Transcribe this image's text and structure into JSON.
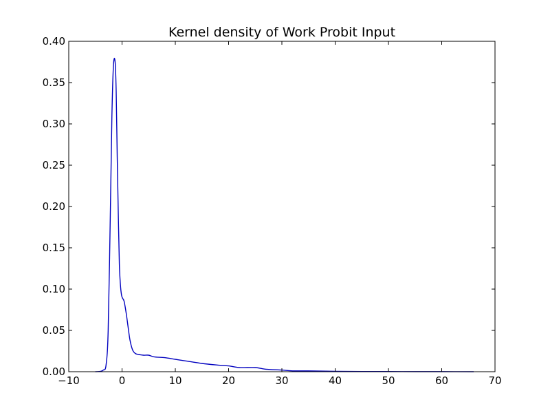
{
  "chart_data": {
    "type": "line",
    "title": "Kernel density of Work Probit Input",
    "xlabel": "",
    "ylabel": "",
    "xlim": [
      -10,
      70
    ],
    "ylim": [
      0,
      0.4
    ],
    "x_ticks": [
      -10,
      0,
      10,
      20,
      30,
      40,
      50,
      60,
      70
    ],
    "y_ticks": [
      0.0,
      0.05,
      0.1,
      0.15,
      0.2,
      0.25,
      0.3,
      0.35,
      0.4
    ],
    "x_tick_labels": [
      "−10",
      "0",
      "10",
      "20",
      "30",
      "40",
      "50",
      "60",
      "70"
    ],
    "y_tick_labels": [
      "0.00",
      "0.05",
      "0.10",
      "0.15",
      "0.20",
      "0.25",
      "0.30",
      "0.35",
      "0.40"
    ],
    "grid": false,
    "line_color": "#0000bf",
    "series": [
      {
        "x": [
          -5,
          -4,
          -3.5,
          -3,
          -2.6,
          -2.2,
          -1.9,
          -1.6,
          -1.3,
          -1.1,
          -0.9,
          -0.7,
          -0.5,
          -0.3,
          -0.1,
          0.1,
          0.4,
          0.8,
          1.1,
          1.5,
          2.0,
          2.5,
          3.0,
          4.0,
          5.0,
          6.0,
          8.0,
          10.0,
          12.0,
          15.0,
          18.0,
          20.0,
          22.0,
          25.0,
          27.0,
          30.0,
          32.0,
          35.0,
          40.0,
          45.0,
          50.0,
          55.0,
          60.0,
          66.0
        ],
        "y": [
          0.0,
          0.0005,
          0.002,
          0.008,
          0.05,
          0.19,
          0.31,
          0.372,
          0.375,
          0.34,
          0.26,
          0.19,
          0.13,
          0.105,
          0.093,
          0.089,
          0.085,
          0.07,
          0.056,
          0.038,
          0.026,
          0.022,
          0.021,
          0.02,
          0.02,
          0.018,
          0.017,
          0.015,
          0.013,
          0.01,
          0.008,
          0.007,
          0.005,
          0.005,
          0.003,
          0.002,
          0.001,
          0.001,
          0.0005,
          0.0003,
          0.0002,
          0.0001,
          0.0001,
          0.0
        ]
      }
    ]
  }
}
